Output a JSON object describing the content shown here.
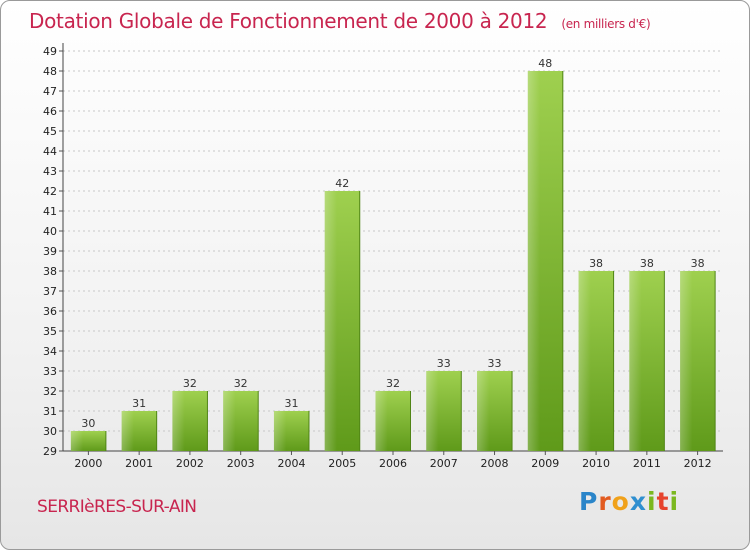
{
  "chart_data": {
    "type": "bar",
    "title": "Dotation Globale de Fonctionnement de 2000 à 2012",
    "subtitle": "(en milliers d'€)",
    "categories": [
      "2000",
      "2001",
      "2002",
      "2003",
      "2004",
      "2005",
      "2006",
      "2007",
      "2008",
      "2009",
      "2010",
      "2011",
      "2012"
    ],
    "values": [
      30,
      31,
      32,
      32,
      31,
      42,
      32,
      33,
      33,
      48,
      38,
      38,
      38
    ],
    "ylim": [
      29,
      49
    ],
    "yticks": [
      29,
      30,
      31,
      32,
      33,
      34,
      35,
      36,
      37,
      38,
      39,
      40,
      41,
      42,
      43,
      44,
      45,
      46,
      47,
      48,
      49
    ],
    "xlabel": "",
    "ylabel": "",
    "bar_color": "#7cb82f",
    "bar_color_light": "#9fd04f",
    "bar_color_dark": "#5f9a1a",
    "grid": true
  },
  "location": "SERRIèRES-SUR-AIN",
  "brand": {
    "letters": [
      {
        "ch": "P",
        "cls": "p"
      },
      {
        "ch": "r",
        "cls": "r"
      },
      {
        "ch": "o",
        "cls": "o"
      },
      {
        "ch": "x",
        "cls": "x"
      },
      {
        "ch": "i",
        "cls": "i"
      },
      {
        "ch": "t",
        "cls": "t"
      },
      {
        "ch": "i",
        "cls": "i"
      }
    ]
  },
  "colors": {
    "accent": "#c8254f"
  }
}
